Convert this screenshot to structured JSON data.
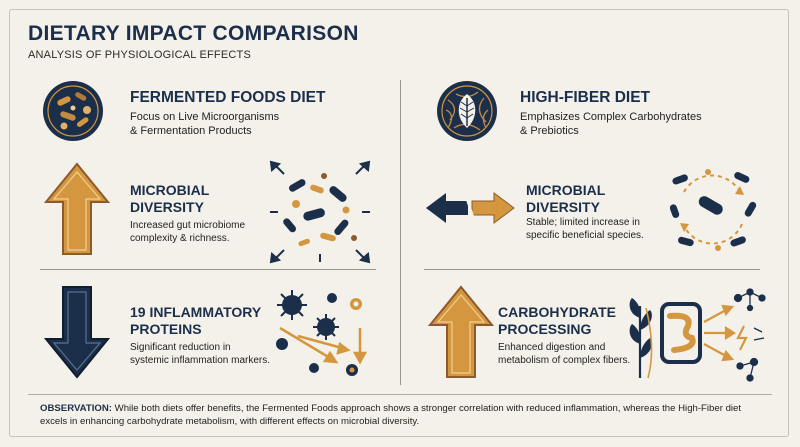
{
  "header": {
    "title": "DIETARY IMPACT COMPARISON",
    "subtitle": "ANALYSIS OF PHYSIOLOGICAL EFFECTS"
  },
  "left": {
    "diet_title": "FERMENTED FOODS DIET",
    "diet_desc_1": "Focus on Live Microorganisms",
    "diet_desc_2": "& Fermentation Products",
    "metric1": {
      "title_1": "MICROBIAL",
      "title_2": "DIVERSITY",
      "desc_1": "Increased gut microbiome",
      "desc_2": "complexity & richness.",
      "direction": "increase"
    },
    "metric2": {
      "title_1": "19 INFLAMMATORY",
      "title_2": "PROTEINS",
      "desc_1": "Significant reduction in",
      "desc_2": "systemic inflammation markers.",
      "direction": "decrease"
    }
  },
  "right": {
    "diet_title": "HIGH-FIBER DIET",
    "diet_desc_1": "Emphasizes Complex Carbohydrates",
    "diet_desc_2": "& Prebiotics",
    "metric1": {
      "title_1": "MICROBIAL",
      "title_2": "DIVERSITY",
      "desc_1": "Stable; limited increase in",
      "desc_2": "specific beneficial species.",
      "direction": "stable"
    },
    "metric2": {
      "title_1": "CARBOHYDRATE",
      "title_2": "PROCESSING",
      "desc_1": "Enhanced digestion and",
      "desc_2": "metabolism of complex fibers.",
      "direction": "increase"
    }
  },
  "footer": {
    "label": "OBSERVATION:",
    "text": "While both diets offer benefits, the Fermented Foods approach shows a stronger correlation with reduced inflammation, whereas the High-Fiber diet excels in enhancing carbohydrate metabolism, with different effects on microbial diversity."
  },
  "colors": {
    "navy": "#1c2f4a",
    "gold": "#d4973f",
    "brown": "#8c5a2b",
    "background": "#f4f1ea"
  },
  "icons": {
    "left_badge": "microbes-badge-icon",
    "right_badge": "fiber-leaf-badge-icon",
    "up_arrow": "up-arrow-icon",
    "down_arrow": "down-arrow-icon",
    "bidirectional_arrow": "bidirectional-arrow-icon"
  }
}
